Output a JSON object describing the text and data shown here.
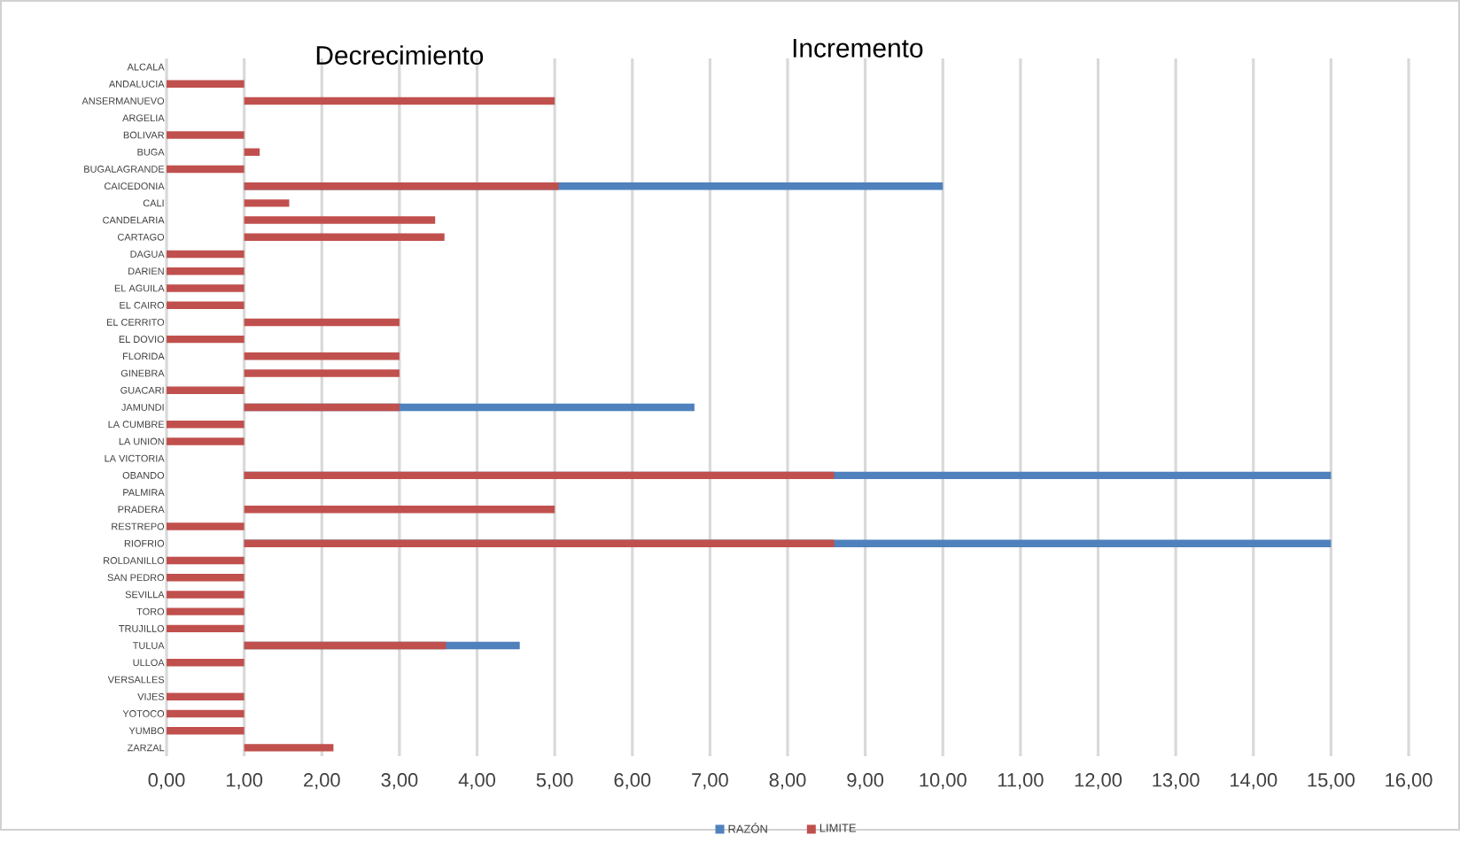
{
  "chart_data": {
    "type": "bar",
    "orientation": "horizontal",
    "annotations": [
      "Decrecimiento",
      "Incremento"
    ],
    "categories": [
      "ALCALA",
      "ANDALUCIA",
      "ANSERMANUEVO",
      "ARGELIA",
      "BOLIVAR",
      "BUGA",
      "BUGALAGRANDE",
      "CAICEDONIA",
      "CALI",
      "CANDELARIA",
      "CARTAGO",
      "DAGUA",
      "DARIEN",
      "EL AGUILA",
      "EL CAIRO",
      "EL CERRITO",
      "EL DOVIO",
      "FLORIDA",
      "GINEBRA",
      "GUACARI",
      "JAMUNDI",
      "LA CUMBRE",
      "LA UNION",
      "LA VICTORIA",
      "OBANDO",
      "PALMIRA",
      "PRADERA",
      "RESTREPO",
      "RIOFRIO",
      "ROLDANILLO",
      "SAN PEDRO",
      "SEVILLA",
      "TORO",
      "TRUJILLO",
      "TULUA",
      "ULLOA",
      "VERSALLES",
      "VIJES",
      "YOTOCO",
      "YUMBO",
      "ZARZAL"
    ],
    "series": [
      {
        "name": "RAZÓN",
        "color": "#4f81bd",
        "base": [
          null,
          null,
          null,
          null,
          null,
          null,
          null,
          1,
          null,
          null,
          null,
          null,
          null,
          null,
          null,
          null,
          null,
          null,
          null,
          null,
          1,
          null,
          null,
          null,
          1,
          null,
          null,
          null,
          1,
          null,
          null,
          null,
          null,
          null,
          1,
          null,
          null,
          null,
          null,
          null,
          null
        ],
        "values": [
          null,
          null,
          null,
          null,
          null,
          null,
          null,
          9,
          null,
          null,
          null,
          null,
          null,
          null,
          null,
          null,
          null,
          null,
          null,
          null,
          5.8,
          null,
          null,
          null,
          14,
          null,
          null,
          null,
          14,
          null,
          null,
          null,
          null,
          null,
          3.55,
          null,
          null,
          null,
          null,
          null,
          null
        ]
      },
      {
        "name": "LIMITE",
        "color": "#c0504d",
        "base": [
          null,
          1,
          1,
          null,
          1,
          1,
          1,
          1,
          1,
          1,
          1,
          1,
          1,
          1,
          1,
          1,
          1,
          1,
          1,
          1,
          1,
          1,
          1,
          null,
          1,
          null,
          1,
          1,
          1,
          1,
          1,
          1,
          1,
          1,
          1,
          1,
          null,
          1,
          1,
          1,
          1
        ],
        "values": [
          null,
          -1,
          4,
          null,
          -1,
          0.2,
          -1,
          4.05,
          0.58,
          2.46,
          2.58,
          -1,
          -1,
          -1,
          -1,
          2,
          -1,
          2,
          2,
          -1,
          2,
          -1,
          -1,
          null,
          7.6,
          null,
          4,
          -1,
          7.6,
          -1,
          -1,
          -1,
          -1,
          -1,
          2.6,
          -1,
          null,
          -1,
          -1,
          -1,
          1.15
        ]
      }
    ],
    "xlim": [
      0,
      16
    ],
    "xticks": [
      {
        "value": 0,
        "label": "0,00"
      },
      {
        "value": 1,
        "label": "1,00"
      },
      {
        "value": 2,
        "label": "2,00"
      },
      {
        "value": 3,
        "label": "3,00"
      },
      {
        "value": 4,
        "label": "4,00"
      },
      {
        "value": 5,
        "label": "5,00"
      },
      {
        "value": 6,
        "label": "6,00"
      },
      {
        "value": 7,
        "label": "7,00"
      },
      {
        "value": 8,
        "label": "8,00"
      },
      {
        "value": 9,
        "label": "9,00"
      },
      {
        "value": 10,
        "label": "10,00"
      },
      {
        "value": 11,
        "label": "11,00"
      },
      {
        "value": 12,
        "label": "12,00"
      },
      {
        "value": 13,
        "label": "13,00"
      },
      {
        "value": 14,
        "label": "14,00"
      },
      {
        "value": 15,
        "label": "15,00"
      },
      {
        "value": 16,
        "label": "16,00"
      }
    ],
    "grid": "x",
    "legend": "bottom"
  }
}
